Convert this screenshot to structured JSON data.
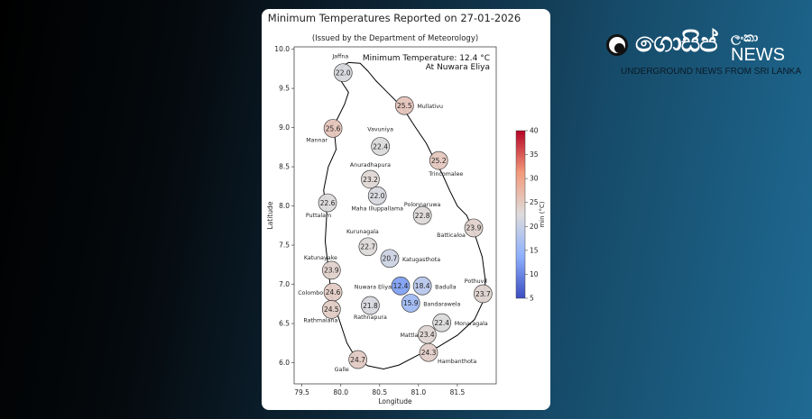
{
  "logo": {
    "main": "ගොසිප්",
    "sub": "ලංකා",
    "news": "NEWS",
    "tagline": "UNDERGROUND NEWS FROM SRI LANKA"
  },
  "chart_data": {
    "type": "scatter",
    "title": "Minimum Temperatures Reported on 27-01-2026",
    "subtitle": "(Issued by the Department of Meteorology)",
    "annotation_line1": "Minimum Temperature: 12.4 °C",
    "annotation_line2": "At Nuwara Eliya",
    "xlabel": "Longitude",
    "ylabel": "Latitude",
    "xlim": [
      79.4,
      82.0
    ],
    "ylim": [
      5.73,
      10.03
    ],
    "xticks": [
      "79.5",
      "80.0",
      "80.5",
      "81.0",
      "81.5"
    ],
    "yticks": [
      "6.0",
      "6.5",
      "7.0",
      "7.5",
      "8.0",
      "8.5",
      "9.0",
      "9.5",
      "10.0"
    ],
    "grid": false,
    "colorbar": {
      "label": "min (°C)",
      "vmin": 5,
      "vmax": 40,
      "ticks": [
        "5",
        "10",
        "15",
        "20",
        "25",
        "30",
        "35",
        "40"
      ],
      "colormap": "coolwarm"
    },
    "stations": [
      {
        "name": "Jaffna",
        "lon": 80.03,
        "lat": 9.7,
        "value": "22.0"
      },
      {
        "name": "Mullativu",
        "lon": 80.82,
        "lat": 9.28,
        "value": "25.5"
      },
      {
        "name": "Mannar",
        "lon": 79.9,
        "lat": 8.99,
        "value": "25.6"
      },
      {
        "name": "Vavuniya",
        "lon": 80.51,
        "lat": 8.76,
        "value": "22.4"
      },
      {
        "name": "Trincomalee",
        "lon": 81.26,
        "lat": 8.58,
        "value": "25.2"
      },
      {
        "name": "Anuradhapura",
        "lon": 80.38,
        "lat": 8.34,
        "value": "23.2"
      },
      {
        "name": "Maha Illuppallama",
        "lon": 80.47,
        "lat": 8.13,
        "value": "22.0"
      },
      {
        "name": "Puttalam",
        "lon": 79.83,
        "lat": 8.04,
        "value": "22.6"
      },
      {
        "name": "Polonnaruwa",
        "lon": 81.05,
        "lat": 7.88,
        "value": "22.8"
      },
      {
        "name": "Batticaloa",
        "lon": 81.71,
        "lat": 7.72,
        "value": "23.9"
      },
      {
        "name": "Kurunagala",
        "lon": 80.35,
        "lat": 7.48,
        "value": "22.7"
      },
      {
        "name": "Katugasthota",
        "lon": 80.63,
        "lat": 7.33,
        "value": "20.7"
      },
      {
        "name": "Katunayake",
        "lon": 79.88,
        "lat": 7.18,
        "value": "23.9"
      },
      {
        "name": "Nuwara Eliya",
        "lon": 80.77,
        "lat": 6.98,
        "value": "12.4"
      },
      {
        "name": "Badulla",
        "lon": 81.05,
        "lat": 6.98,
        "value": "18.4"
      },
      {
        "name": "Colombo",
        "lon": 79.9,
        "lat": 6.9,
        "value": "24.6"
      },
      {
        "name": "Pothuvil",
        "lon": 81.83,
        "lat": 6.88,
        "value": "23.7"
      },
      {
        "name": "Bandarawela",
        "lon": 80.9,
        "lat": 6.76,
        "value": "15.9"
      },
      {
        "name": "Rathnapura",
        "lon": 80.38,
        "lat": 6.73,
        "value": "21.8"
      },
      {
        "name": "Rathmalana",
        "lon": 79.88,
        "lat": 6.68,
        "value": "24.5"
      },
      {
        "name": "Monaragala",
        "lon": 81.3,
        "lat": 6.51,
        "value": "22.4"
      },
      {
        "name": "Mattla",
        "lon": 81.11,
        "lat": 6.36,
        "value": "23.4"
      },
      {
        "name": "Hambanthota",
        "lon": 81.13,
        "lat": 6.13,
        "value": "24.3"
      },
      {
        "name": "Galle",
        "lon": 80.22,
        "lat": 6.04,
        "value": "24.7"
      }
    ],
    "coastline": [
      [
        80.1,
        9.83
      ],
      [
        80.25,
        9.82
      ],
      [
        80.35,
        9.72
      ],
      [
        80.45,
        9.6
      ],
      [
        80.6,
        9.45
      ],
      [
        80.8,
        9.25
      ],
      [
        80.95,
        9.02
      ],
      [
        81.1,
        8.8
      ],
      [
        81.2,
        8.6
      ],
      [
        81.3,
        8.42
      ],
      [
        81.4,
        8.2
      ],
      [
        81.5,
        8.0
      ],
      [
        81.62,
        7.88
      ],
      [
        81.72,
        7.65
      ],
      [
        81.82,
        7.35
      ],
      [
        81.86,
        7.05
      ],
      [
        81.84,
        6.8
      ],
      [
        81.72,
        6.55
      ],
      [
        81.5,
        6.35
      ],
      [
        81.25,
        6.2
      ],
      [
        81.0,
        6.1
      ],
      [
        80.75,
        5.97
      ],
      [
        80.55,
        5.92
      ],
      [
        80.35,
        5.96
      ],
      [
        80.2,
        6.05
      ],
      [
        80.08,
        6.25
      ],
      [
        79.98,
        6.55
      ],
      [
        79.88,
        6.85
      ],
      [
        79.84,
        7.2
      ],
      [
        79.8,
        7.55
      ],
      [
        79.82,
        7.9
      ],
      [
        79.78,
        8.2
      ],
      [
        79.84,
        8.5
      ],
      [
        79.94,
        8.72
      ],
      [
        79.92,
        8.92
      ],
      [
        79.84,
        9.0
      ],
      [
        79.95,
        9.1
      ],
      [
        80.05,
        9.3
      ],
      [
        80.1,
        9.45
      ],
      [
        80.0,
        9.6
      ],
      [
        79.96,
        9.72
      ],
      [
        80.05,
        9.8
      ],
      [
        80.1,
        9.83
      ]
    ]
  }
}
